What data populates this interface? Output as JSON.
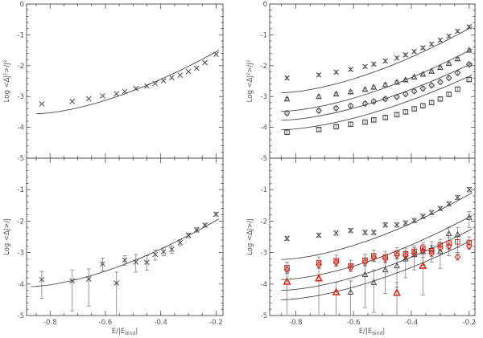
{
  "figure": {
    "background": "#ffffff",
    "axis_color": "#4a4a4a",
    "text_color": "#555555",
    "errorbar_color": "#808080",
    "red_color": "#dd2211",
    "x_tick_labels": [
      "-0.8",
      "-0.6",
      "-0.4",
      "-0.2"
    ],
    "x_tick_values": [
      -0.8,
      -0.6,
      -0.4,
      -0.2
    ],
    "xlabel": {
      "main": "E/|E",
      "sub": "bind",
      "end": "|"
    }
  },
  "chart_data": [
    {
      "id": "top-left",
      "type": "scatter",
      "ylabel": "Log <ΔJ²>/J²",
      "xlim": [
        -0.885,
        -0.175
      ],
      "ylim": [
        -5,
        0
      ],
      "y_tick_labels": [
        "0",
        "-1",
        "-2",
        "-3",
        "-4",
        "-5"
      ],
      "y_tick_values": [
        0,
        -1,
        -2,
        -3,
        -4,
        -5
      ],
      "show_x_tick_labels": false,
      "x": [
        -0.83,
        -0.72,
        -0.66,
        -0.61,
        -0.56,
        -0.53,
        -0.49,
        -0.45,
        -0.42,
        -0.39,
        -0.36,
        -0.33,
        -0.3,
        -0.27,
        -0.24,
        -0.2
      ],
      "series": [
        {
          "name": "dj2-cross",
          "marker": "x",
          "color": "#4a4a4a",
          "values": [
            -3.24,
            -3.16,
            -3.07,
            -2.98,
            -2.91,
            -2.84,
            -2.74,
            -2.66,
            -2.58,
            -2.49,
            -2.39,
            -2.31,
            -2.19,
            -2.08,
            -1.9,
            -1.63
          ]
        }
      ],
      "curves": [
        {
          "x0": -0.85,
          "y0": -3.56,
          "x1": -0.19,
          "y1": -1.5
        }
      ]
    },
    {
      "id": "top-right",
      "type": "scatter",
      "ylabel": "Log <ΔJ²>/J²",
      "xlim": [
        -0.89,
        -0.18
      ],
      "ylim": [
        -5,
        0
      ],
      "y_tick_labels": [
        "0",
        "-1",
        "-2",
        "-3",
        "-4",
        "-5"
      ],
      "y_tick_values": [
        0,
        -1,
        -2,
        -3,
        -4,
        -5
      ],
      "show_x_tick_labels": false,
      "x": [
        -0.83,
        -0.72,
        -0.66,
        -0.61,
        -0.56,
        -0.53,
        -0.49,
        -0.45,
        -0.42,
        -0.39,
        -0.36,
        -0.33,
        -0.3,
        -0.27,
        -0.24,
        -0.2
      ],
      "series": [
        {
          "name": "dj2-cross",
          "marker": "x",
          "color": "#4a4a4a",
          "err": 0.05,
          "values": [
            -2.4,
            -2.3,
            -2.21,
            -2.12,
            -2.03,
            -1.95,
            -1.85,
            -1.75,
            -1.65,
            -1.54,
            -1.42,
            -1.3,
            -1.17,
            -1.04,
            -0.88,
            -0.74
          ]
        },
        {
          "name": "dj2-triangle",
          "marker": "triangle",
          "color": "#4a4a4a",
          "err": 0.05,
          "values": [
            -3.08,
            -3.0,
            -2.92,
            -2.85,
            -2.77,
            -2.7,
            -2.62,
            -2.54,
            -2.46,
            -2.37,
            -2.28,
            -2.18,
            -2.06,
            -1.93,
            -1.78,
            -1.5
          ]
        },
        {
          "name": "dj2-diamond",
          "marker": "diamond",
          "color": "#4a4a4a",
          "err": 0.06,
          "values": [
            -3.54,
            -3.46,
            -3.38,
            -3.3,
            -3.23,
            -3.16,
            -3.08,
            -3.01,
            -2.92,
            -2.83,
            -2.74,
            -2.64,
            -2.53,
            -2.4,
            -2.23,
            -1.96
          ]
        },
        {
          "name": "dj2-square",
          "marker": "square",
          "color": "#4a4a4a",
          "err": 0.06,
          "values": [
            -4.16,
            -4.07,
            -3.98,
            -3.9,
            -3.83,
            -3.76,
            -3.68,
            -3.59,
            -3.5,
            -3.4,
            -3.3,
            -3.2,
            -3.08,
            -2.93,
            -2.76,
            -2.45
          ]
        }
      ],
      "curves": [
        {
          "x0": -0.85,
          "y0": -2.88,
          "x1": -0.19,
          "y1": -0.74
        },
        {
          "x0": -0.85,
          "y0": -3.48,
          "x1": -0.19,
          "y1": -1.46
        },
        {
          "x0": -0.85,
          "y0": -3.77,
          "x1": -0.19,
          "y1": -1.92
        },
        {
          "x0": -0.85,
          "y0": -4.08,
          "x1": -0.19,
          "y1": -2.3
        }
      ]
    },
    {
      "id": "bottom-left",
      "type": "scatter",
      "ylabel": "Log <ΔJ>/J",
      "xlim": [
        -0.885,
        -0.175
      ],
      "ylim": [
        -5,
        0
      ],
      "y_tick_labels": [
        "-1",
        "-2",
        "-3",
        "-4",
        "-5"
      ],
      "y_tick_values": [
        -1,
        -2,
        -3,
        -4,
        -5
      ],
      "show_x_tick_labels": true,
      "x": [
        -0.83,
        -0.72,
        -0.66,
        -0.61,
        -0.56,
        -0.53,
        -0.49,
        -0.45,
        -0.42,
        -0.39,
        -0.36,
        -0.33,
        -0.3,
        -0.27,
        -0.24,
        -0.2
      ],
      "series": [
        {
          "name": "dj-cross",
          "marker": "x",
          "color": "#4a4a4a",
          "values": [
            -3.86,
            -3.9,
            -3.84,
            -3.36,
            -3.97,
            -3.24,
            -3.3,
            -3.31,
            -3.06,
            -2.97,
            -2.9,
            -2.68,
            -2.45,
            -2.28,
            -2.13,
            -1.78
          ],
          "err_lo": [
            -4.45,
            -4.85,
            -4.7,
            -3.58,
            -5.0,
            -3.4,
            -3.62,
            -3.56,
            -3.24,
            -3.1,
            -3.02,
            -2.78,
            -2.53,
            -2.35,
            -2.19,
            -1.84
          ],
          "err_hi": [
            -3.6,
            -3.55,
            -3.52,
            -3.18,
            -3.62,
            -3.1,
            -3.06,
            -3.1,
            -2.92,
            -2.85,
            -2.79,
            -2.59,
            -2.38,
            -2.21,
            -2.07,
            -1.72
          ]
        }
      ],
      "curves": [
        {
          "x0": -0.87,
          "y0": -4.08,
          "x1": -0.19,
          "y1": -1.93
        }
      ]
    },
    {
      "id": "bottom-right",
      "type": "scatter",
      "ylabel": "Log <ΔJ>/J",
      "xlim": [
        -0.89,
        -0.18
      ],
      "ylim": [
        -5,
        0
      ],
      "y_tick_labels": [
        "-1",
        "-2",
        "-3",
        "-4",
        "-5"
      ],
      "y_tick_values": [
        -1,
        -2,
        -3,
        -4,
        -5
      ],
      "show_x_tick_labels": true,
      "x": [
        -0.83,
        -0.72,
        -0.66,
        -0.61,
        -0.56,
        -0.53,
        -0.49,
        -0.45,
        -0.42,
        -0.39,
        -0.36,
        -0.33,
        -0.3,
        -0.27,
        -0.24,
        -0.2
      ],
      "series": [
        {
          "name": "dj-cross-black",
          "marker": "x",
          "color": "#4a4a4a",
          "err": 0.07,
          "values": [
            -2.55,
            -2.45,
            -2.38,
            -2.3,
            -2.36,
            -2.36,
            -2.12,
            -2.12,
            -2.06,
            -1.98,
            -1.85,
            -1.73,
            -1.6,
            -1.45,
            -1.25,
            -1.0
          ]
        },
        {
          "name": "dj-triangle-black",
          "marker": "triangle",
          "color": "#4a4a4a",
          "values": [
            null,
            null,
            null,
            -4.26,
            -3.7,
            -3.95,
            -3.55,
            -3.42,
            -3.2,
            -3.06,
            -2.97,
            -2.88,
            -2.97,
            -2.4,
            -2.43,
            -1.88
          ],
          "err_lo": [
            null,
            null,
            null,
            -5.0,
            -4.75,
            -4.9,
            -4.3,
            -4.1,
            -3.8,
            -3.55,
            -3.4,
            -3.3,
            -3.5,
            -3.1,
            -3.0,
            -2.2
          ],
          "err_hi": [
            null,
            null,
            null,
            -3.9,
            -3.35,
            -3.55,
            -3.2,
            -3.1,
            -2.95,
            -2.85,
            -2.75,
            -2.65,
            -2.7,
            -2.2,
            -2.2,
            -1.7
          ]
        },
        {
          "name": "dj-square-red",
          "marker": "square",
          "color": "#dd2211",
          "err": 0.18,
          "values": [
            -3.48,
            -3.32,
            -3.26,
            -3.42,
            -3.24,
            -3.1,
            -3.14,
            -3.02,
            -3.04,
            -2.96,
            -2.86,
            -2.94,
            -2.76,
            -2.7,
            -2.66,
            -2.68
          ]
        },
        {
          "name": "dj-diamond-red",
          "marker": "diamond",
          "color": "#dd2211",
          "err": 0.1,
          "values": [
            -3.55,
            -3.39,
            -3.32,
            -3.48,
            -3.3,
            -3.17,
            -3.2,
            -3.08,
            -3.1,
            -3.02,
            -2.94,
            -3.02,
            -2.85,
            -2.8,
            -3.14,
            -2.8
          ]
        },
        {
          "name": "dj-triangle-red",
          "marker": "triangle-big",
          "color": "#dd2211",
          "values": [
            -3.93,
            -3.82,
            -4.26,
            null,
            null,
            null,
            null,
            -4.28,
            null,
            null,
            -3.42,
            null,
            null,
            null,
            null,
            null
          ],
          "err_lo": [
            -5.0,
            -5.0,
            -5.0,
            null,
            null,
            null,
            null,
            -5.0,
            null,
            null,
            -4.35,
            null,
            null,
            null,
            null,
            null
          ],
          "err_hi": [
            -3.6,
            -3.5,
            -3.95,
            null,
            null,
            null,
            null,
            -3.95,
            null,
            null,
            -3.15,
            null,
            null,
            null,
            null,
            null
          ]
        }
      ],
      "curves": [
        {
          "x0": -0.85,
          "y0": -3.22,
          "x1": -0.19,
          "y1": -1.1
        },
        {
          "x0": -0.85,
          "y0": -3.86,
          "x1": -0.19,
          "y1": -1.82
        },
        {
          "x0": -0.85,
          "y0": -4.2,
          "x1": -0.19,
          "y1": -2.25
        },
        {
          "x0": -0.85,
          "y0": -4.5,
          "x1": -0.19,
          "y1": -2.6
        }
      ]
    }
  ]
}
